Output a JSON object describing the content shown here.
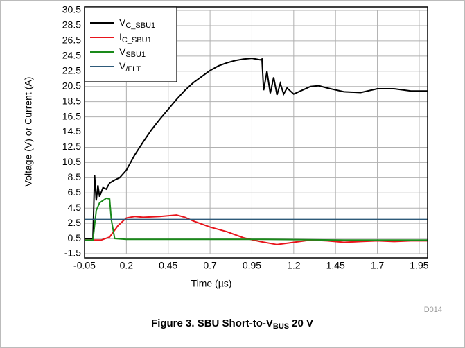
{
  "chart_data": {
    "type": "line",
    "title": "Figure 3. SBU Short-to-V",
    "title_sub": "BUS",
    "title_end": "20 V",
    "xlabel": "Time (µs)",
    "ylabel": "Voltage (V) or Current (A)",
    "annotation": "D014",
    "xlim": [
      -0.05,
      2.0
    ],
    "ylim": [
      -1.5,
      30.5
    ],
    "xticks": [
      -0.05,
      0.2,
      0.45,
      0.7,
      0.95,
      1.2,
      1.45,
      1.7,
      1.95
    ],
    "yticks": [
      -1.5,
      0.5,
      2.5,
      4.5,
      6.5,
      8.5,
      10.5,
      12.5,
      14.5,
      16.5,
      18.5,
      20.5,
      22.5,
      24.5,
      26.5,
      28.5,
      30.5
    ],
    "grid": true,
    "legend": "upper left",
    "series": [
      {
        "name": "V",
        "name_sub": "C_SBU1",
        "color": "#000000",
        "x": [
          -0.05,
          -0.02,
          0,
          0.01,
          0.02,
          0.03,
          0.04,
          0.06,
          0.08,
          0.1,
          0.13,
          0.16,
          0.2,
          0.25,
          0.3,
          0.35,
          0.4,
          0.45,
          0.5,
          0.55,
          0.6,
          0.65,
          0.7,
          0.75,
          0.8,
          0.85,
          0.9,
          0.95,
          1.0,
          1.01,
          1.02,
          1.04,
          1.06,
          1.08,
          1.1,
          1.12,
          1.14,
          1.16,
          1.2,
          1.25,
          1.3,
          1.35,
          1.4,
          1.5,
          1.6,
          1.7,
          1.8,
          1.9,
          2.0
        ],
        "values": [
          0.5,
          0.5,
          0.5,
          8.8,
          5.5,
          7.5,
          6.0,
          7.2,
          7.0,
          7.8,
          8.2,
          8.5,
          9.5,
          11.5,
          13.2,
          14.8,
          16.2,
          17.5,
          18.8,
          20.0,
          21.0,
          21.8,
          22.6,
          23.2,
          23.6,
          23.9,
          24.1,
          24.2,
          24.0,
          24.1,
          20.0,
          22.5,
          19.6,
          21.7,
          19.4,
          20.9,
          19.5,
          20.3,
          19.5,
          20.0,
          20.5,
          20.6,
          20.3,
          19.8,
          19.7,
          20.2,
          20.2,
          19.9,
          19.9
        ]
      },
      {
        "name": "I",
        "name_sub": "C_SBU1",
        "color": "#e8141b",
        "x": [
          -0.05,
          0.05,
          0.1,
          0.15,
          0.2,
          0.25,
          0.3,
          0.4,
          0.5,
          0.55,
          0.6,
          0.7,
          0.8,
          0.9,
          1.0,
          1.1,
          1.2,
          1.3,
          1.4,
          1.5,
          1.6,
          1.7,
          1.8,
          1.9,
          2.0
        ],
        "values": [
          0.3,
          0.3,
          0.7,
          2.2,
          3.2,
          3.4,
          3.3,
          3.4,
          3.6,
          3.3,
          2.8,
          2.0,
          1.4,
          0.6,
          0.1,
          -0.3,
          0.0,
          0.3,
          0.2,
          0.0,
          0.1,
          0.2,
          0.1,
          0.2,
          0.2
        ]
      },
      {
        "name": "V",
        "name_sub": "SBU1",
        "color": "#1a8a1a",
        "x": [
          -0.05,
          0.0,
          0.02,
          0.04,
          0.06,
          0.08,
          0.1,
          0.11,
          0.13,
          0.2,
          0.5,
          1.0,
          1.5,
          2.0
        ],
        "values": [
          0.3,
          0.3,
          4.2,
          5.2,
          5.5,
          5.8,
          5.7,
          3.0,
          0.5,
          0.4,
          0.4,
          0.4,
          0.3,
          0.3
        ]
      },
      {
        "name": "V",
        "name_sub": "/FLT",
        "color": "#2e5a7a",
        "x": [
          -0.05,
          2.0
        ],
        "values": [
          3.0,
          3.0
        ]
      }
    ]
  }
}
